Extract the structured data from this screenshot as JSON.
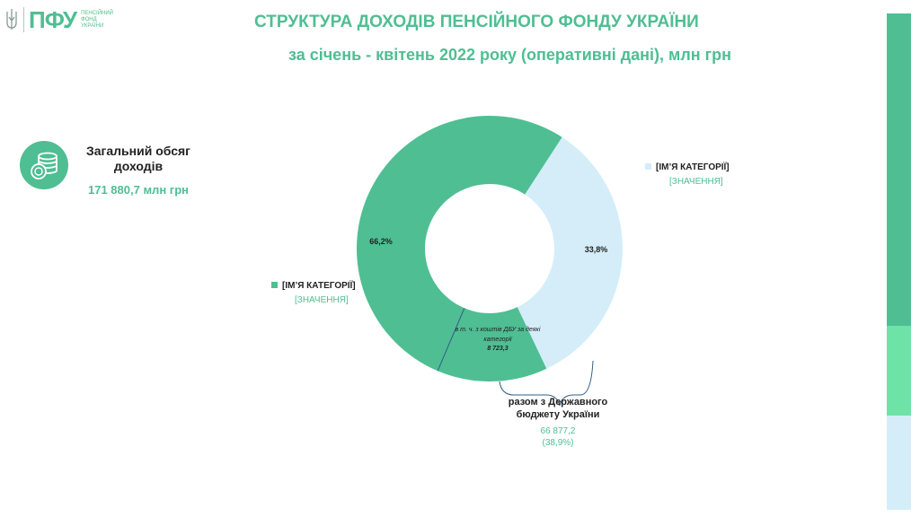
{
  "header": {
    "logo_text": "ПФУ",
    "logo_sub": [
      "ПЕНСІЙНИЙ",
      "ФОНД",
      "УКРАЇНИ"
    ],
    "title": "СТРУКТУРА  ДОХОДІВ ПЕНСІЙНОГО ФОНДУ УКРАЇНИ",
    "subtitle": "за січень - квітень 2022 року (оперативні дані), млн грн"
  },
  "total": {
    "label": "Загальний обсяг доходів",
    "value": "171 880,7 млн грн"
  },
  "colors": {
    "accent": "#4fbe93",
    "light": "#d4edf9",
    "mint": "#6ee3a8"
  },
  "chart_data": {
    "type": "pie",
    "donut": true,
    "slices": [
      {
        "label": "[ІМ’Я КАТЕГОРІЇ]",
        "value_label": "[ЗНАЧЕННЯ]",
        "percent": 66.2,
        "percent_label": "66,2%",
        "color": "#4fbe93"
      },
      {
        "label": "[ІМ’Я КАТЕГОРІЇ]",
        "value_label": "[ЗНАЧЕННЯ]",
        "percent": 33.8,
        "percent_label": "33,8%",
        "color": "#d4edf9"
      }
    ],
    "annotations": {
      "inner_note": "в т. ч. з коштів ДБУ за деякі категорії",
      "inner_value": "8 723,3",
      "budget_label": "разом з Державного бюджету України",
      "budget_value": "66 877,2",
      "budget_share": "(38,9%)"
    }
  },
  "side_bar": [
    {
      "color": "#4fbe93",
      "share": 0.63
    },
    {
      "color": "#6ee3a8",
      "share": 0.18
    },
    {
      "color": "#d4edf9",
      "share": 0.19
    }
  ]
}
